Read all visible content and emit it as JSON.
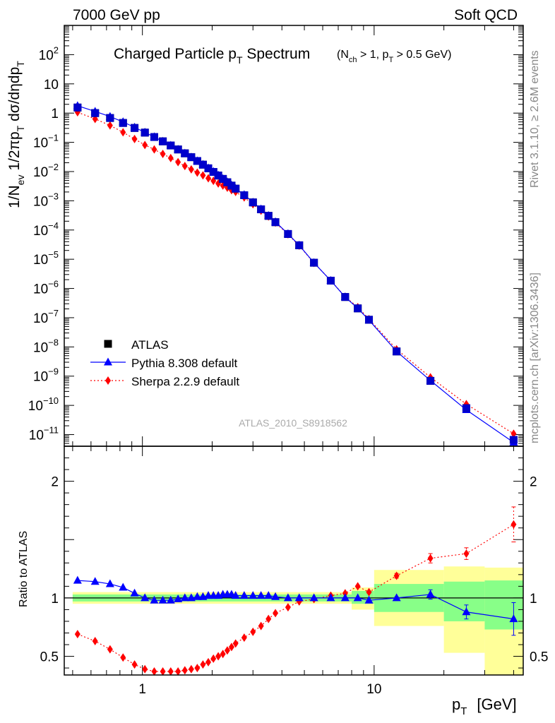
{
  "header": {
    "left": "7000 GeV pp",
    "right": "Soft QCD"
  },
  "side_labels": {
    "rivet": "Rivet 3.1.10, ≥ 2.6M events",
    "mcplots": "mcplots.cern.ch [arXiv:1306.3436]"
  },
  "chart_data": {
    "type": "scatter",
    "title": "Charged Particle pT Spectrum",
    "title_parts": {
      "main": "Charged Particle p",
      "main_sub": "T",
      "main_rest": " Spectrum",
      "cut": "(N",
      "cut_sub1": "ch",
      "cut_mid": " > 1, p",
      "cut_sub2": "T",
      "cut_rest": " > 0.5 GeV)"
    },
    "analysis_id": "ATLAS_2010_S8918562",
    "x_scale": "log",
    "xlim": [
      0.46,
      44
    ],
    "xlabel": "p",
    "xlabel_sub": "T",
    "xlabel_unit": "[GeV]",
    "x_ticks": [
      {
        "v": 1,
        "label": "1"
      },
      {
        "v": 10,
        "label": "10"
      }
    ],
    "main": {
      "y_scale": "log",
      "ylim": [
        4e-12,
        1000
      ],
      "ylabel_parts": [
        "1/N",
        "ev",
        " 1/2πp",
        "T",
        " dσ/dηdp",
        "T"
      ],
      "y_ticks": [
        {
          "v": 1e-11,
          "b": "10",
          "e": "−11"
        },
        {
          "v": 1e-10,
          "b": "10",
          "e": "−10"
        },
        {
          "v": 1e-09,
          "b": "10",
          "e": "−9"
        },
        {
          "v": 1e-08,
          "b": "10",
          "e": "−8"
        },
        {
          "v": 1e-07,
          "b": "10",
          "e": "−7"
        },
        {
          "v": 1e-06,
          "b": "10",
          "e": "−6"
        },
        {
          "v": 1e-05,
          "b": "10",
          "e": "−5"
        },
        {
          "v": 0.0001,
          "b": "10",
          "e": "−4"
        },
        {
          "v": 0.001,
          "b": "10",
          "e": "−3"
        },
        {
          "v": 0.01,
          "b": "10",
          "e": "−2"
        },
        {
          "v": 0.1,
          "b": "10",
          "e": "−1"
        },
        {
          "v": 1,
          "b": "1",
          "e": ""
        },
        {
          "v": 10,
          "b": "10",
          "e": ""
        },
        {
          "v": 100,
          "b": "10",
          "e": "2"
        }
      ]
    },
    "ratio": {
      "y_scale": "linear",
      "ylim": [
        0.34,
        2.3
      ],
      "ylabel": "Ratio to ATLAS",
      "y_ticks": [
        {
          "v": 0.5,
          "label": "0.5"
        },
        {
          "v": 1,
          "label": "1"
        },
        {
          "v": 2,
          "label": "2"
        }
      ],
      "bands": [
        {
          "x0": 0.5,
          "x1": 8.0,
          "y0": 0.95,
          "y1": 1.05,
          "inner_y0": 0.97,
          "inner_y1": 1.03
        },
        {
          "x0": 8.0,
          "x1": 10.0,
          "y0": 0.9,
          "y1": 1.09,
          "inner_y0": 0.95,
          "inner_y1": 1.06
        },
        {
          "x0": 10.0,
          "x1": 20.0,
          "y0": 0.76,
          "y1": 1.24,
          "inner_y0": 0.88,
          "inner_y1": 1.12
        },
        {
          "x0": 20.0,
          "x1": 30.0,
          "y0": 0.53,
          "y1": 1.27,
          "inner_y0": 0.8,
          "inner_y1": 1.14
        },
        {
          "x0": 30.0,
          "x1": 44.0,
          "y0": 0.34,
          "y1": 1.26,
          "inner_y0": 0.73,
          "inner_y1": 1.15
        }
      ]
    },
    "x": [
      0.525,
      0.625,
      0.725,
      0.825,
      0.925,
      1.025,
      1.125,
      1.225,
      1.325,
      1.425,
      1.525,
      1.625,
      1.725,
      1.825,
      1.925,
      2.025,
      2.125,
      2.225,
      2.325,
      2.425,
      2.525,
      2.75,
      3.0,
      3.25,
      3.5,
      3.75,
      4.25,
      4.75,
      5.5,
      6.5,
      7.5,
      8.5,
      9.5,
      12.5,
      17.5,
      25.0,
      40.0
    ],
    "series": [
      {
        "name": "ATLAS",
        "marker": "square",
        "color": "#000000",
        "values": [
          1.55,
          1.0,
          0.68,
          0.46,
          0.31,
          0.215,
          0.152,
          0.108,
          0.078,
          0.057,
          0.042,
          0.031,
          0.023,
          0.0172,
          0.0129,
          0.0097,
          0.0073,
          0.0056,
          0.0043,
          0.0033,
          0.0026,
          0.00155,
          0.00088,
          0.00051,
          0.000305,
          0.000185,
          7.3e-05,
          3e-05,
          7.6e-06,
          1.85e-06,
          5.1e-07,
          2.08e-07,
          8.5e-08,
          7e-09,
          6.9e-10,
          8e-11,
          6.6e-12
        ]
      },
      {
        "name": "Pythia 8.308 default",
        "marker": "triangle",
        "color": "#0000ff",
        "values": [
          1.78,
          1.14,
          0.76,
          0.5,
          0.325,
          0.22,
          0.153,
          0.108,
          0.078,
          0.057,
          0.042,
          0.031,
          0.023,
          0.0174,
          0.0131,
          0.0099,
          0.0075,
          0.0057,
          0.0044,
          0.0034,
          0.0026,
          0.0016,
          0.00089,
          0.00052,
          0.00031,
          0.00019,
          7.4e-05,
          3e-05,
          7.6e-06,
          1.85e-06,
          5.1e-07,
          2.08e-07,
          8.3e-08,
          7e-09,
          7.1e-10,
          7e-11,
          5.4e-12
        ],
        "ratio": [
          1.15,
          1.14,
          1.12,
          1.09,
          1.04,
          1.0,
          0.98,
          0.98,
          0.98,
          0.99,
          1.0,
          1.0,
          1.01,
          1.01,
          1.02,
          1.02,
          1.02,
          1.03,
          1.03,
          1.03,
          1.02,
          1.02,
          1.02,
          1.02,
          1.02,
          1.01,
          1.0,
          1.0,
          1.0,
          1.0,
          1.0,
          1.0,
          0.98,
          1.0,
          1.03,
          0.88,
          0.82
        ],
        "ratio_err": [
          0,
          0,
          0,
          0,
          0,
          0,
          0,
          0,
          0,
          0,
          0,
          0,
          0,
          0,
          0,
          0,
          0,
          0,
          0,
          0,
          0,
          0,
          0,
          0,
          0,
          0,
          0,
          0,
          0,
          0,
          0,
          0,
          0,
          0.01,
          0.04,
          0.06,
          0.14
        ]
      },
      {
        "name": "Sherpa 2.2.9 default",
        "marker": "diamond",
        "color": "#ff0000",
        "values": [
          1.07,
          0.63,
          0.38,
          0.22,
          0.13,
          0.081,
          0.057,
          0.04,
          0.029,
          0.021,
          0.0155,
          0.0119,
          0.0092,
          0.0074,
          0.0059,
          0.0048,
          0.0039,
          0.0033,
          0.0028,
          0.0023,
          0.002,
          0.0013,
          0.00076,
          0.00046,
          0.00029,
          0.00018,
          7.1e-05,
          2.9e-05,
          7.5e-06,
          1.88e-06,
          5.2e-07,
          2.3e-07,
          8.9e-08,
          8.3e-09,
          9.1e-10,
          1.1e-10,
          1.07e-11
        ],
        "ratio": [
          0.69,
          0.63,
          0.56,
          0.49,
          0.43,
          0.39,
          0.37,
          0.37,
          0.37,
          0.37,
          0.38,
          0.39,
          0.4,
          0.43,
          0.45,
          0.48,
          0.5,
          0.52,
          0.55,
          0.58,
          0.61,
          0.66,
          0.71,
          0.76,
          0.82,
          0.87,
          0.92,
          0.97,
          0.99,
          1.02,
          1.04,
          1.1,
          1.05,
          1.19,
          1.34,
          1.38,
          1.63
        ],
        "ratio_err": [
          0,
          0,
          0,
          0,
          0,
          0,
          0,
          0,
          0,
          0,
          0,
          0,
          0,
          0,
          0,
          0,
          0,
          0,
          0,
          0,
          0,
          0,
          0,
          0,
          0,
          0,
          0,
          0,
          0,
          0,
          0,
          0,
          0.01,
          0.02,
          0.04,
          0.05,
          0.15
        ]
      }
    ],
    "legend_placement": "lower-left"
  }
}
